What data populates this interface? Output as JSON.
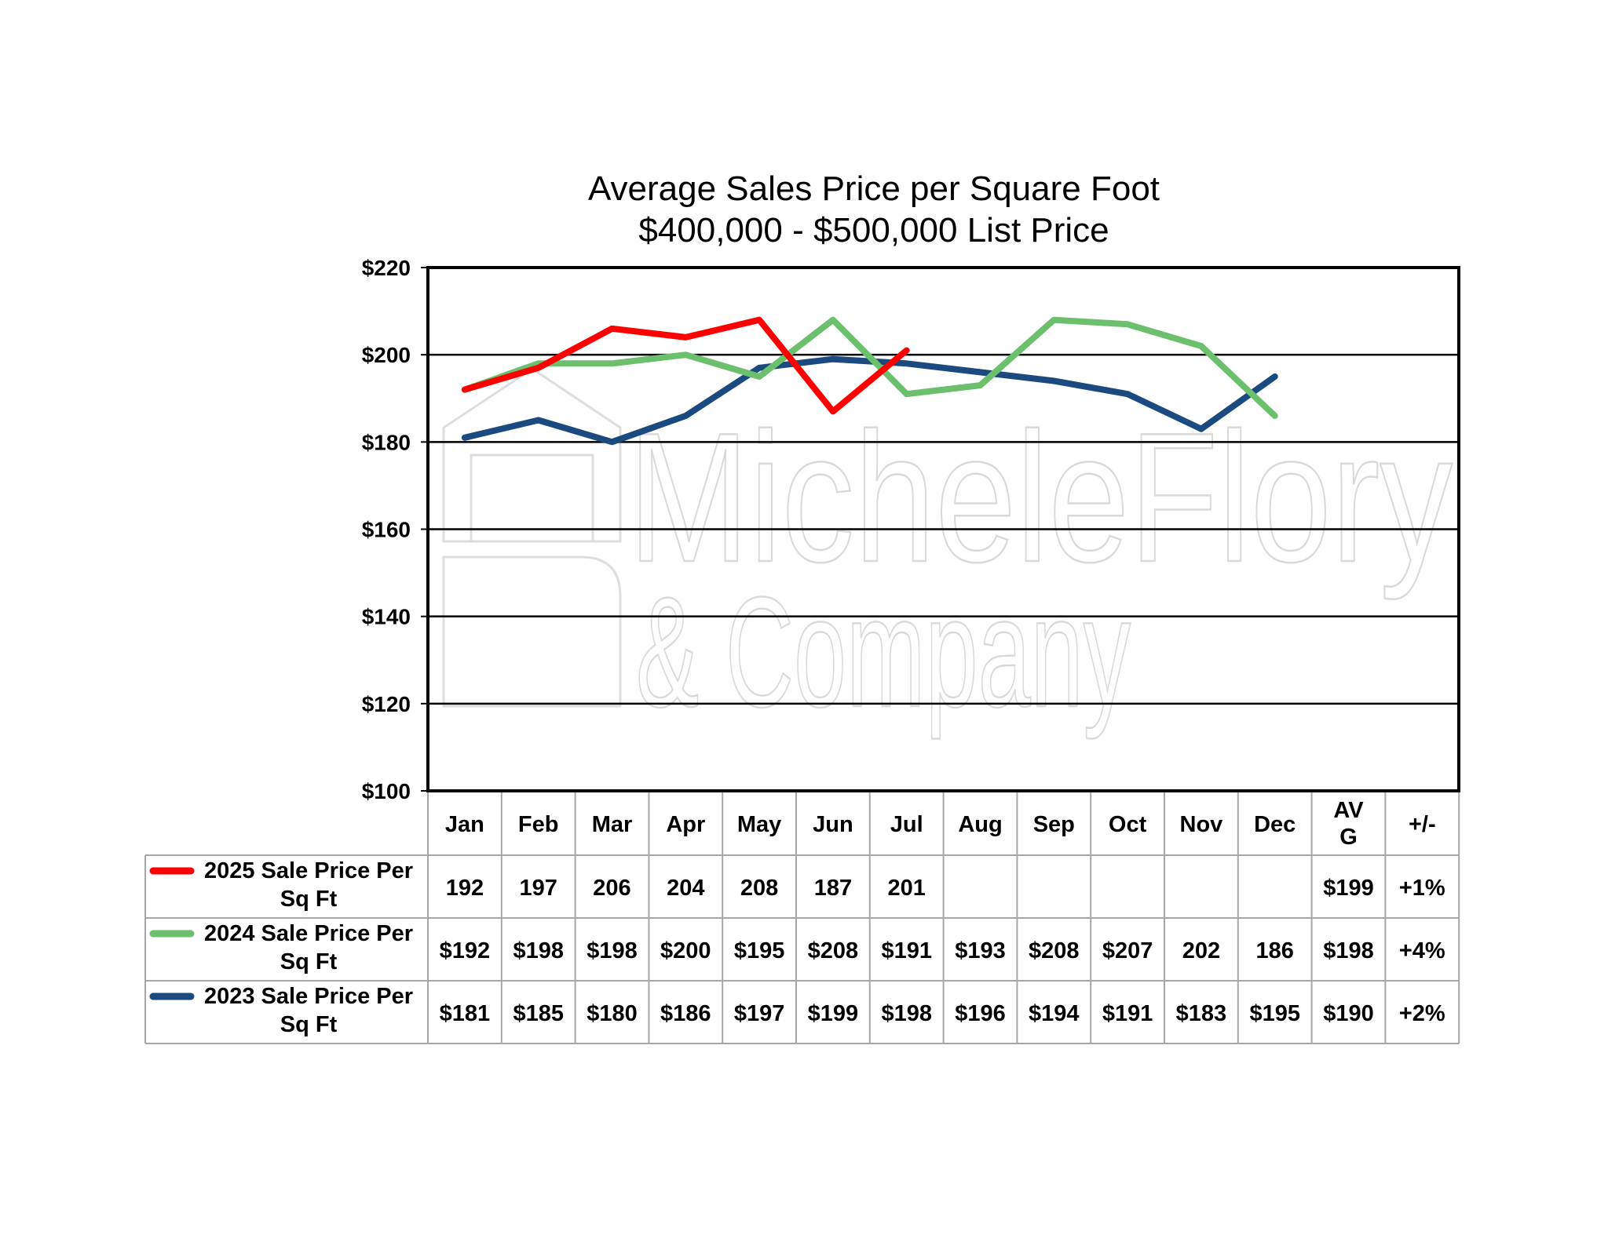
{
  "chart_data": {
    "type": "line",
    "title": "Average Sales Price per Square Foot",
    "subtitle": "$400,000 - $500,000 List Price",
    "categories": [
      "Jan",
      "Feb",
      "Mar",
      "Apr",
      "May",
      "Jun",
      "Jul",
      "Aug",
      "Sep",
      "Oct",
      "Nov",
      "Dec"
    ],
    "ylim": [
      100,
      220
    ],
    "yticks": [
      100,
      120,
      140,
      160,
      180,
      200,
      220
    ],
    "ytick_labels": [
      "$100",
      "$120",
      "$140",
      "$160",
      "$180",
      "$200",
      "$220"
    ],
    "grid": true,
    "legend_placement": "table-left",
    "table_header_extra": [
      "AV\nG",
      "+/-"
    ],
    "series": [
      {
        "name": "2025 Sale Price Per Sq Ft",
        "color": "#ff0000",
        "values": [
          192,
          197,
          206,
          204,
          208,
          187,
          201,
          null,
          null,
          null,
          null,
          null
        ],
        "table_values": [
          "192",
          "197",
          "206",
          "204",
          "208",
          "187",
          "201",
          "",
          "",
          "",
          "",
          ""
        ],
        "avg": "$199",
        "change": "+1%"
      },
      {
        "name": "2024 Sale Price Per Sq Ft",
        "color": "#6cbf6c",
        "values": [
          192,
          198,
          198,
          200,
          195,
          208,
          191,
          193,
          208,
          207,
          202,
          186
        ],
        "table_values": [
          "$192",
          "$198",
          "$198",
          "$200",
          "$195",
          "$208",
          "$191",
          "$193",
          "$208",
          "$207",
          "202",
          "186"
        ],
        "avg": "$198",
        "change": "+4%"
      },
      {
        "name": "2023 Sale Price Per Sq Ft",
        "color": "#1a4a7f",
        "values": [
          181,
          185,
          180,
          186,
          197,
          199,
          198,
          196,
          194,
          191,
          183,
          195
        ],
        "table_values": [
          "$181",
          "$185",
          "$180",
          "$186",
          "$197",
          "$199",
          "$198",
          "$196",
          "$194",
          "$191",
          "$183",
          "$195"
        ],
        "avg": "$190",
        "change": "+2%"
      }
    ]
  },
  "watermark": {
    "line1": "MicheleFlory",
    "line2": "& Company"
  }
}
